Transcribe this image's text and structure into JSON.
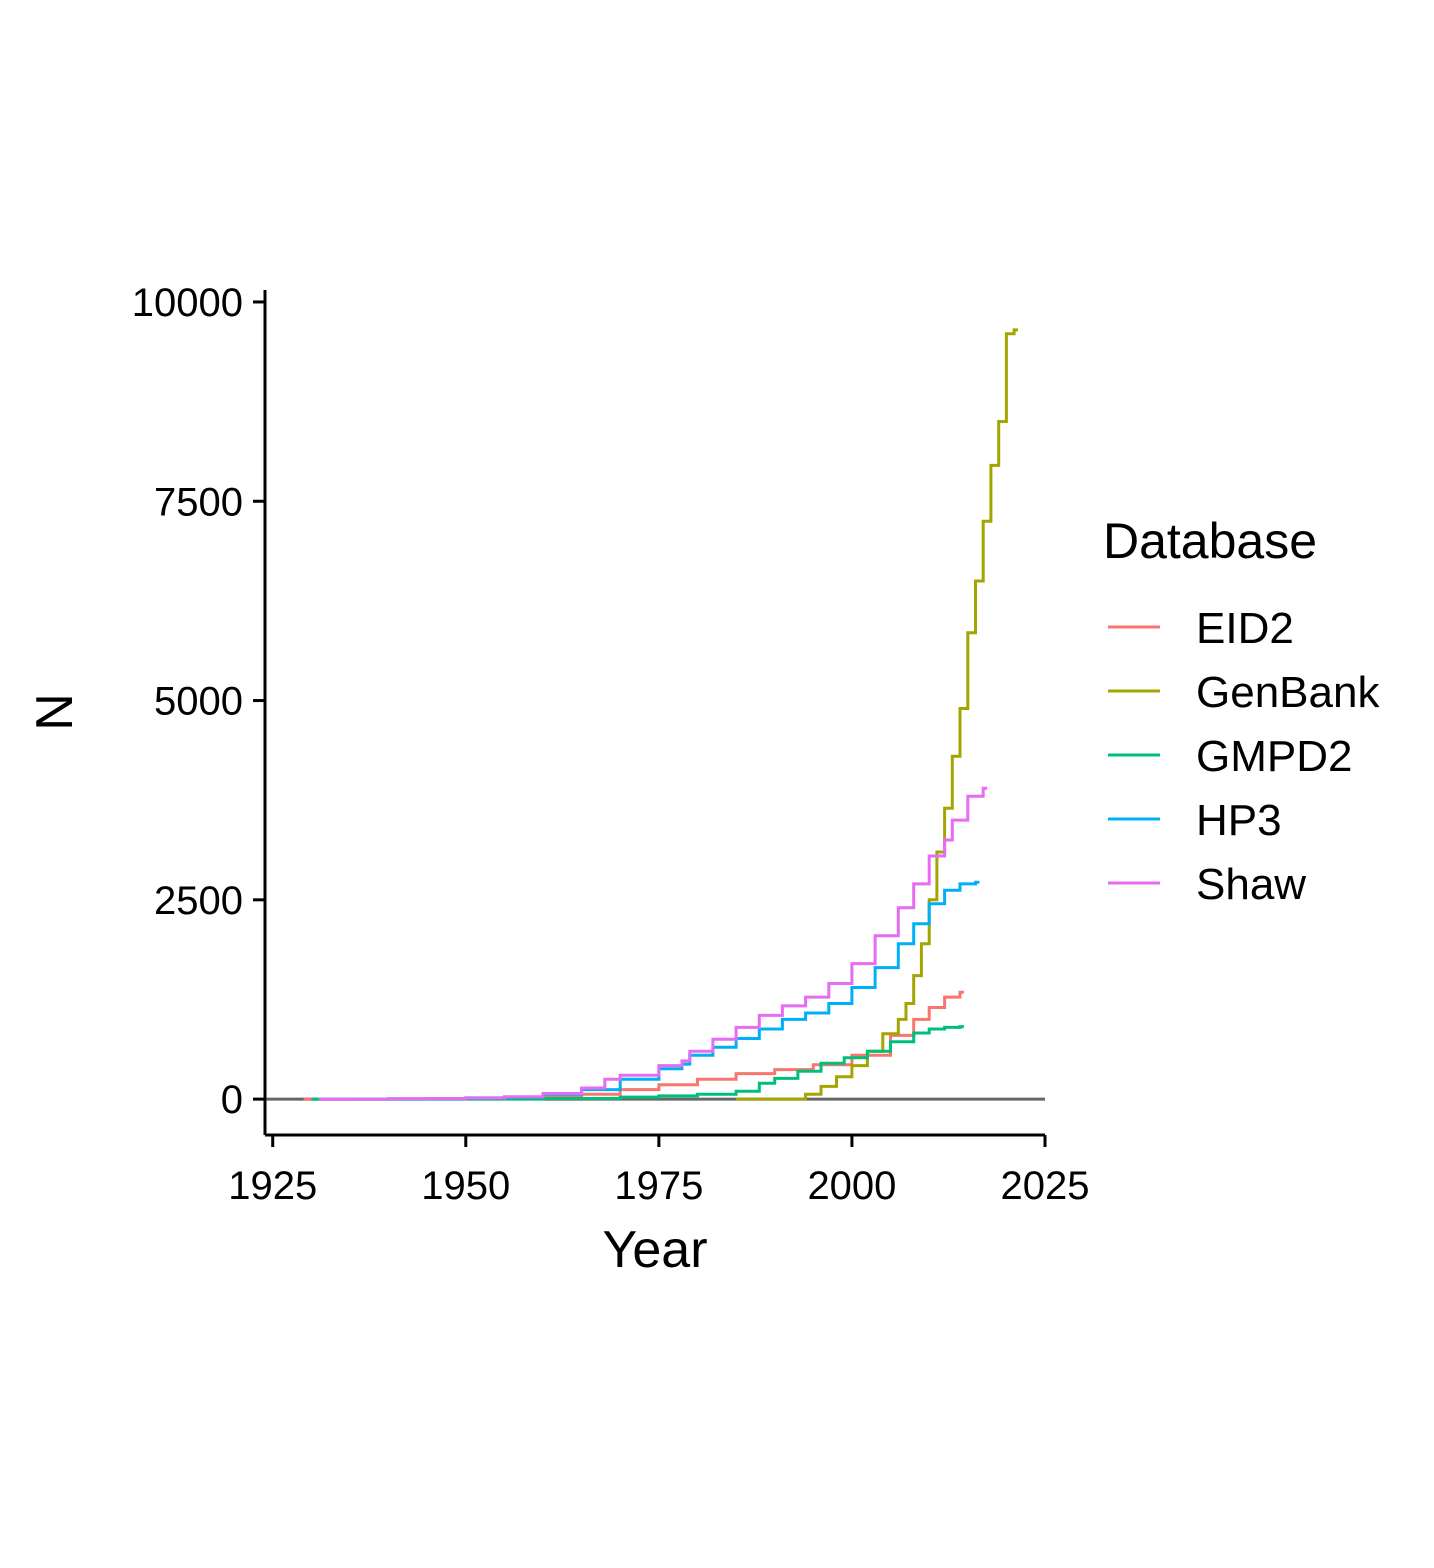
{
  "chart_data": {
    "type": "line",
    "step": true,
    "title": "",
    "xlabel": "Year",
    "ylabel": "N",
    "xlim": [
      1924,
      2025
    ],
    "ylim": [
      -450,
      10150
    ],
    "x_ticks": [
      1925,
      1950,
      1975,
      2000,
      2025
    ],
    "y_ticks": [
      0,
      2500,
      5000,
      7500,
      10000
    ],
    "x_tick_labels": [
      "1925",
      "1950",
      "1975",
      "2000",
      "2025"
    ],
    "y_tick_labels": [
      "0",
      "2500",
      "5000",
      "7500",
      "10000"
    ],
    "grid": false,
    "reference_line": {
      "y": 0,
      "color": "#666666"
    },
    "legend": {
      "title": "Database",
      "placement": "right"
    },
    "series": [
      {
        "name": "EID2",
        "color": "#F8766D",
        "points": [
          [
            1929,
            0
          ],
          [
            1935,
            2
          ],
          [
            1945,
            6
          ],
          [
            1955,
            15
          ],
          [
            1960,
            30
          ],
          [
            1965,
            60
          ],
          [
            1970,
            120
          ],
          [
            1975,
            180
          ],
          [
            1980,
            250
          ],
          [
            1985,
            320
          ],
          [
            1990,
            370
          ],
          [
            1995,
            430
          ],
          [
            2000,
            550
          ],
          [
            2005,
            800
          ],
          [
            2008,
            1000
          ],
          [
            2010,
            1150
          ],
          [
            2012,
            1280
          ],
          [
            2014,
            1340
          ]
        ]
      },
      {
        "name": "GenBank",
        "color": "#A3A500",
        "points": [
          [
            1985,
            0
          ],
          [
            1993,
            0
          ],
          [
            1994,
            60
          ],
          [
            1996,
            160
          ],
          [
            1998,
            280
          ],
          [
            2000,
            420
          ],
          [
            2002,
            600
          ],
          [
            2004,
            820
          ],
          [
            2006,
            1000
          ],
          [
            2007,
            1200
          ],
          [
            2008,
            1550
          ],
          [
            2009,
            1950
          ],
          [
            2010,
            2500
          ],
          [
            2011,
            3100
          ],
          [
            2012,
            3650
          ],
          [
            2013,
            4300
          ],
          [
            2014,
            4900
          ],
          [
            2015,
            5850
          ],
          [
            2016,
            6500
          ],
          [
            2017,
            7250
          ],
          [
            2018,
            7950
          ],
          [
            2019,
            8500
          ],
          [
            2020,
            9600
          ],
          [
            2021,
            9650
          ]
        ]
      },
      {
        "name": "GMPD2",
        "color": "#00BF7D",
        "points": [
          [
            1930,
            0
          ],
          [
            1950,
            2
          ],
          [
            1960,
            8
          ],
          [
            1970,
            25
          ],
          [
            1975,
            40
          ],
          [
            1980,
            60
          ],
          [
            1985,
            100
          ],
          [
            1988,
            200
          ],
          [
            1990,
            260
          ],
          [
            1993,
            350
          ],
          [
            1996,
            450
          ],
          [
            1999,
            520
          ],
          [
            2002,
            600
          ],
          [
            2005,
            720
          ],
          [
            2008,
            830
          ],
          [
            2010,
            880
          ],
          [
            2012,
            900
          ],
          [
            2014,
            910
          ]
        ]
      },
      {
        "name": "HP3",
        "color": "#00B0F6",
        "points": [
          [
            1931,
            0
          ],
          [
            1940,
            5
          ],
          [
            1950,
            15
          ],
          [
            1955,
            25
          ],
          [
            1960,
            60
          ],
          [
            1965,
            120
          ],
          [
            1970,
            250
          ],
          [
            1975,
            380
          ],
          [
            1978,
            440
          ],
          [
            1979,
            550
          ],
          [
            1982,
            650
          ],
          [
            1985,
            760
          ],
          [
            1988,
            880
          ],
          [
            1991,
            1000
          ],
          [
            1994,
            1080
          ],
          [
            1997,
            1200
          ],
          [
            2000,
            1400
          ],
          [
            2003,
            1650
          ],
          [
            2006,
            1950
          ],
          [
            2008,
            2200
          ],
          [
            2010,
            2450
          ],
          [
            2012,
            2620
          ],
          [
            2014,
            2700
          ],
          [
            2016,
            2720
          ]
        ]
      },
      {
        "name": "Shaw",
        "color": "#E76BF3",
        "points": [
          [
            1931,
            0
          ],
          [
            1940,
            5
          ],
          [
            1950,
            15
          ],
          [
            1955,
            30
          ],
          [
            1960,
            70
          ],
          [
            1965,
            140
          ],
          [
            1968,
            250
          ],
          [
            1970,
            300
          ],
          [
            1975,
            420
          ],
          [
            1978,
            480
          ],
          [
            1979,
            600
          ],
          [
            1982,
            750
          ],
          [
            1985,
            900
          ],
          [
            1988,
            1050
          ],
          [
            1991,
            1170
          ],
          [
            1994,
            1280
          ],
          [
            1997,
            1450
          ],
          [
            2000,
            1700
          ],
          [
            2003,
            2050
          ],
          [
            2006,
            2400
          ],
          [
            2008,
            2700
          ],
          [
            2010,
            3050
          ],
          [
            2012,
            3250
          ],
          [
            2013,
            3500
          ],
          [
            2015,
            3800
          ],
          [
            2017,
            3900
          ]
        ]
      }
    ]
  }
}
